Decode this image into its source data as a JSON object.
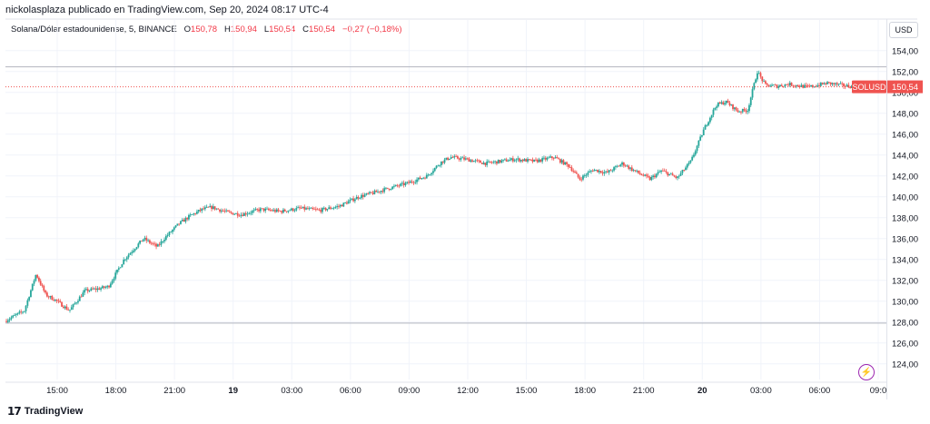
{
  "header": {
    "published_text": "nickolasplaza publicado en TradingView.com, Sep 20, 2024 08:17 UTC-4"
  },
  "legend": {
    "symbol_text": "Solana/Dólar estadounidense, 5, BINANCE",
    "open_label": "O",
    "open_value": "150,78",
    "high_label": "H",
    "high_value": "150,94",
    "low_label": "L",
    "low_value": "150,54",
    "close_label": "C",
    "close_value": "150,54",
    "change_value": "−0,27 (−0,18%)"
  },
  "currency_button": "USD",
  "footer": {
    "logo_glyph": "17",
    "brand": "TradingView"
  },
  "icons": {
    "lightning": "lightning-icon",
    "logo": "tradingview-logo-icon"
  },
  "colors": {
    "up": "#26a69a",
    "down": "#ef5350",
    "grid": "#f0f3fa",
    "price_label_bg": "#ef5350",
    "accent": "#9c27b0"
  },
  "chart_data": {
    "type": "candlestick",
    "title": "Solana/Dólar estadounidense, 5, BINANCE",
    "interval": "5",
    "ylim": [
      122.5,
      155.2
    ],
    "y_ticks": [
      "154,00",
      "152,00",
      "150,00",
      "148,00",
      "146,00",
      "144,00",
      "142,00",
      "140,00",
      "138,00",
      "136,00",
      "134,00",
      "132,00",
      "130,00",
      "128,00",
      "126,00",
      "124,00"
    ],
    "y_tick_values": [
      154,
      152,
      150,
      148,
      146,
      144,
      142,
      140,
      138,
      136,
      134,
      132,
      130,
      128,
      126,
      124
    ],
    "x_ticks": [
      {
        "label": "15:00",
        "hours": 2.0,
        "bold": false
      },
      {
        "label": "18:00",
        "hours": 5.0,
        "bold": false
      },
      {
        "label": "21:00",
        "hours": 8.0,
        "bold": false
      },
      {
        "label": "19",
        "hours": 11.0,
        "bold": true
      },
      {
        "label": "03:00",
        "hours": 14.0,
        "bold": false
      },
      {
        "label": "06:00",
        "hours": 17.0,
        "bold": false
      },
      {
        "label": "09:00",
        "hours": 20.0,
        "bold": false
      },
      {
        "label": "12:00",
        "hours": 23.0,
        "bold": false
      },
      {
        "label": "15:00",
        "hours": 26.0,
        "bold": false
      },
      {
        "label": "18:00",
        "hours": 29.0,
        "bold": false
      },
      {
        "label": "21:00",
        "hours": 32.0,
        "bold": false
      },
      {
        "label": "20",
        "hours": 35.0,
        "bold": true
      },
      {
        "label": "03:00",
        "hours": 38.0,
        "bold": false
      },
      {
        "label": "06:00",
        "hours": 41.0,
        "bold": false
      },
      {
        "label": "09:0",
        "hours": 44.0,
        "bold": false
      }
    ],
    "path_hours": [
      -0.6,
      0.4,
      1.0,
      1.5,
      2.0,
      2.7,
      3.5,
      4.2,
      4.7,
      5.5,
      6.5,
      7.2,
      7.6,
      8.3,
      8.9,
      9.5,
      10.0,
      10.8,
      11.5,
      12.5,
      13.5,
      14.5,
      15.5,
      16.5,
      17.5,
      18.3,
      19.0,
      20.0,
      21.0,
      21.7,
      22.2,
      23.0,
      24.0,
      25.5,
      26.5,
      27.5,
      28.3,
      28.8,
      29.5,
      30.2,
      31.0,
      31.5,
      32.4,
      33.0,
      33.8,
      34.5,
      35.2,
      35.8,
      36.3,
      36.9,
      37.4,
      37.9,
      38.3,
      38.9,
      39.5,
      40.5,
      41.5,
      42.5,
      43.4
    ],
    "path_prices": [
      128.1,
      129.1,
      132.6,
      130.6,
      130.1,
      129.1,
      131.0,
      131.2,
      131.4,
      134.0,
      136.0,
      135.2,
      136.1,
      137.4,
      138.2,
      138.8,
      139.0,
      138.5,
      138.3,
      138.8,
      138.6,
      138.9,
      138.7,
      139.1,
      140.0,
      140.4,
      140.8,
      141.3,
      142.0,
      143.3,
      143.8,
      143.6,
      143.2,
      143.6,
      143.4,
      143.8,
      142.9,
      141.7,
      142.6,
      142.3,
      143.2,
      142.6,
      141.7,
      142.5,
      141.8,
      143.4,
      146.6,
      148.8,
      149.1,
      148.2,
      148.3,
      152.0,
      150.7,
      150.6,
      150.8,
      150.5,
      150.9,
      150.6,
      150.54
    ],
    "last_price_label": "150,54",
    "symbol_label": "SOLUSD",
    "horizontal_lines": [
      152.45,
      127.9
    ]
  }
}
